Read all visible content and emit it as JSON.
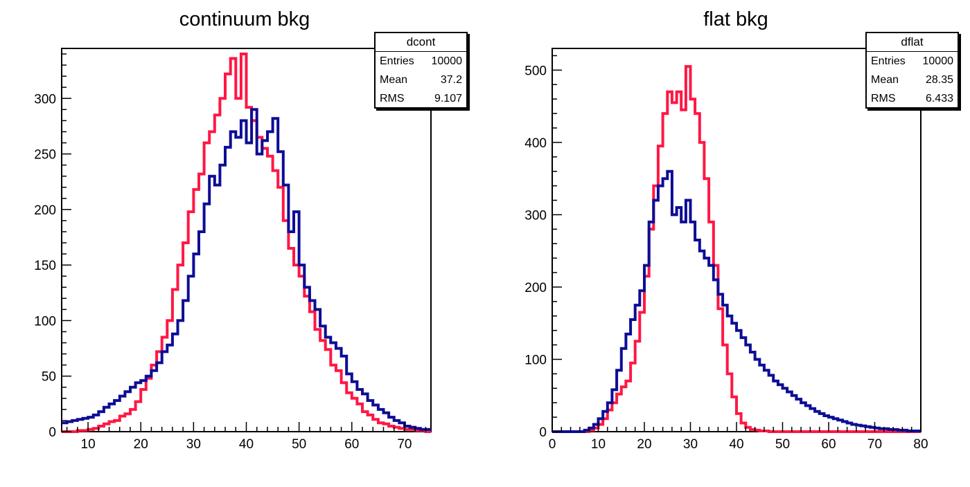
{
  "panels": [
    {
      "title": "continuum bkg",
      "stats": {
        "name": "dcont",
        "rows": [
          {
            "label": "Entries",
            "value": "10000"
          },
          {
            "label": "Mean",
            "value": "37.2"
          },
          {
            "label": "RMS",
            "value": "9.107"
          }
        ]
      }
    },
    {
      "title": "flat bkg",
      "stats": {
        "name": "dflat",
        "rows": [
          {
            "label": "Entries",
            "value": "10000"
          },
          {
            "label": "Mean",
            "value": "28.35"
          },
          {
            "label": "RMS",
            "value": "6.433"
          }
        ]
      }
    }
  ],
  "chart_data": [
    {
      "type": "histogram",
      "title": "continuum bkg",
      "xlim": [
        5,
        75
      ],
      "ylim": [
        0,
        345
      ],
      "xticks": [
        10,
        20,
        30,
        40,
        50,
        60,
        70
      ],
      "yticks": [
        0,
        50,
        100,
        150,
        200,
        250,
        300
      ],
      "grid": false,
      "bin_width": 1,
      "x_start": 5,
      "series": [
        {
          "color": "#ff1744",
          "values": [
            0,
            0,
            0,
            1,
            1,
            2,
            3,
            5,
            7,
            9,
            10,
            14,
            16,
            20,
            27,
            38,
            48,
            60,
            72,
            85,
            100,
            128,
            150,
            170,
            198,
            218,
            232,
            260,
            270,
            285,
            300,
            322,
            336,
            300,
            340,
            292,
            280,
            265,
            255,
            248,
            235,
            220,
            190,
            165,
            150,
            140,
            122,
            108,
            92,
            82,
            74,
            60,
            55,
            44,
            35,
            30,
            25,
            18,
            15,
            11,
            8,
            7,
            5,
            4,
            3,
            2,
            2,
            1,
            1,
            0
          ]
        },
        {
          "color": "#0d0d96",
          "values": [
            8,
            9,
            10,
            11,
            12,
            13,
            15,
            18,
            22,
            25,
            28,
            32,
            36,
            40,
            44,
            46,
            50,
            55,
            62,
            72,
            78,
            88,
            100,
            118,
            140,
            160,
            180,
            205,
            230,
            222,
            240,
            256,
            270,
            265,
            280,
            260,
            290,
            250,
            262,
            270,
            282,
            252,
            222,
            180,
            198,
            150,
            130,
            118,
            110,
            95,
            85,
            80,
            75,
            68,
            52,
            45,
            38,
            34,
            28,
            24,
            20,
            17,
            13,
            10,
            8,
            5,
            4,
            3,
            2,
            2
          ]
        }
      ]
    },
    {
      "type": "histogram",
      "title": "flat bkg",
      "xlim": [
        0,
        80
      ],
      "ylim": [
        0,
        530
      ],
      "xticks": [
        0,
        10,
        20,
        30,
        40,
        50,
        60,
        70,
        80
      ],
      "yticks": [
        0,
        100,
        200,
        300,
        400,
        500
      ],
      "grid": false,
      "bin_width": 1,
      "x_start": 0,
      "series": [
        {
          "color": "#ff1744",
          "values": [
            0,
            0,
            0,
            0,
            0,
            0,
            0,
            0,
            2,
            5,
            10,
            18,
            30,
            40,
            52,
            62,
            70,
            95,
            125,
            165,
            215,
            280,
            340,
            395,
            440,
            470,
            455,
            470,
            445,
            505,
            460,
            440,
            400,
            350,
            290,
            230,
            170,
            120,
            80,
            48,
            25,
            12,
            6,
            3,
            2,
            1,
            1,
            0,
            0,
            0,
            0,
            0,
            0,
            0,
            0,
            0,
            0,
            0,
            0,
            0,
            0,
            0,
            0,
            0,
            0,
            0,
            0,
            0,
            0,
            0,
            0,
            0,
            0,
            0,
            0,
            0,
            0,
            0,
            0,
            0
          ]
        },
        {
          "color": "#0d0d96",
          "values": [
            0,
            0,
            0,
            0,
            0,
            0,
            0,
            2,
            5,
            10,
            18,
            28,
            40,
            58,
            85,
            115,
            135,
            155,
            175,
            195,
            230,
            290,
            320,
            340,
            350,
            360,
            300,
            310,
            290,
            320,
            290,
            265,
            250,
            240,
            230,
            210,
            190,
            175,
            160,
            150,
            140,
            130,
            120,
            110,
            100,
            92,
            85,
            78,
            70,
            65,
            60,
            55,
            50,
            45,
            40,
            36,
            32,
            28,
            25,
            22,
            20,
            18,
            16,
            14,
            12,
            10,
            9,
            8,
            7,
            6,
            5,
            4,
            4,
            3,
            3,
            2,
            2,
            1,
            1,
            1
          ]
        }
      ]
    }
  ]
}
